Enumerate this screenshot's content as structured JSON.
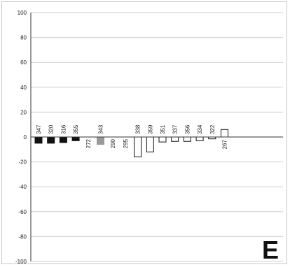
{
  "chart_data": {
    "type": "bar",
    "panel_label": "E",
    "ylim": [
      -100,
      100
    ],
    "yticks": [
      100,
      80,
      60,
      40,
      20,
      0,
      -20,
      -40,
      -60,
      -80,
      -100
    ],
    "grid": true,
    "legend": "none",
    "categories": [
      "347",
      "320",
      "316",
      "355",
      "272",
      "343",
      "290",
      "295",
      "338",
      "359",
      "351",
      "337",
      "356",
      "334",
      "322",
      "267"
    ],
    "values": [
      -5,
      -5,
      -4.5,
      -3,
      0,
      -6,
      0,
      0,
      -16,
      -12,
      -4,
      -3.5,
      -3.5,
      -3,
      -1.5,
      6
    ],
    "bar_styles": [
      "black",
      "black",
      "black",
      "black",
      "none",
      "gray",
      "none",
      "none",
      "white",
      "white",
      "white",
      "white",
      "white",
      "white",
      "white",
      "white"
    ],
    "colors": {
      "black": "#111111",
      "gray": "#999999",
      "white": "#ffffff",
      "outline": "#111111",
      "grid": "#cfcfcf",
      "axis": "#333333"
    }
  }
}
